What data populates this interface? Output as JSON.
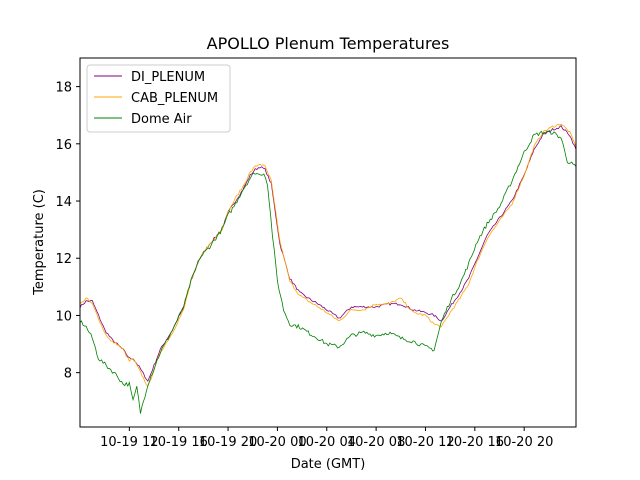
{
  "chart_data": {
    "type": "line",
    "title": "APOLLO Plenum Temperatures",
    "xlabel": "Date (GMT)",
    "ylabel": "Temperature (C)",
    "x_unit": "hours since 10-19 08:00 GMT",
    "xlim": [
      0,
      40.2
    ],
    "ylim": [
      6.1,
      19.0
    ],
    "yticks": [
      8,
      10,
      12,
      14,
      16,
      18
    ],
    "xticks": [
      {
        "value": 4,
        "label": "10-19 12"
      },
      {
        "value": 8,
        "label": "10-19 16"
      },
      {
        "value": 12,
        "label": "10-19 20"
      },
      {
        "value": 16,
        "label": "10-20 00"
      },
      {
        "value": 20,
        "label": "10-20 04"
      },
      {
        "value": 24,
        "label": "10-20 08"
      },
      {
        "value": 28,
        "label": "10-20 12"
      },
      {
        "value": 32,
        "label": "10-20 16"
      },
      {
        "value": 36,
        "label": "10-20 20"
      }
    ],
    "legend_position": "top-left",
    "series": [
      {
        "name": "DI_PLENUM",
        "color": "#800080",
        "x": [
          0,
          0.5,
          1.0,
          1.5,
          2.0,
          2.5,
          3.0,
          3.5,
          4.0,
          4.3,
          4.8,
          5.5,
          6.5,
          7.5,
          8.4,
          9.0,
          9.7,
          10.5,
          11.5,
          12.0,
          12.6,
          13.2,
          13.8,
          14.2,
          14.6,
          15.0,
          15.5,
          16.2,
          17.0,
          17.8,
          18.5,
          19.3,
          20.0,
          21.0,
          22.0,
          23.0,
          24.0,
          25.0,
          26.0,
          27.0,
          28.0,
          28.7,
          29.3,
          30.0,
          30.8,
          31.5,
          32.2,
          33.0,
          34.0,
          35.0,
          36.0,
          36.8,
          37.5,
          38.3,
          39.0,
          39.7,
          40.2
        ],
        "values": [
          10.3,
          10.5,
          10.5,
          10.0,
          9.5,
          9.2,
          9.0,
          8.8,
          8.5,
          8.5,
          8.2,
          7.7,
          8.8,
          9.5,
          10.3,
          11.2,
          12.0,
          12.5,
          13.0,
          13.6,
          14.0,
          14.4,
          14.9,
          15.1,
          15.2,
          15.1,
          14.6,
          12.5,
          11.3,
          10.8,
          10.6,
          10.4,
          10.2,
          9.9,
          10.3,
          10.3,
          10.3,
          10.4,
          10.4,
          10.2,
          10.1,
          10.0,
          9.8,
          10.3,
          10.8,
          11.3,
          12.0,
          12.8,
          13.4,
          14.0,
          14.9,
          15.8,
          16.3,
          16.5,
          16.6,
          16.3,
          15.8
        ]
      },
      {
        "name": "CAB_PLENUM",
        "color": "#ffa500",
        "x": [
          0,
          0.5,
          1.0,
          1.5,
          2.0,
          2.5,
          3.0,
          3.5,
          4.0,
          4.3,
          4.8,
          5.5,
          6.5,
          7.5,
          8.4,
          9.0,
          9.7,
          10.5,
          11.5,
          12.0,
          12.6,
          13.2,
          13.8,
          14.2,
          14.6,
          15.0,
          15.5,
          16.2,
          17.0,
          17.8,
          18.5,
          19.3,
          20.0,
          21.0,
          22.0,
          23.0,
          24.0,
          25.0,
          26.0,
          27.0,
          28.0,
          28.7,
          29.3,
          30.0,
          30.8,
          31.5,
          32.2,
          33.0,
          34.0,
          35.0,
          36.0,
          36.8,
          37.5,
          38.3,
          39.0,
          39.7,
          40.2
        ],
        "values": [
          10.4,
          10.6,
          10.4,
          9.9,
          9.4,
          9.1,
          9.0,
          8.8,
          8.4,
          8.5,
          8.1,
          7.5,
          8.7,
          9.4,
          10.2,
          11.2,
          12.0,
          12.5,
          13.0,
          13.6,
          14.1,
          14.5,
          15.0,
          15.2,
          15.3,
          15.2,
          14.7,
          12.6,
          11.2,
          10.7,
          10.5,
          10.3,
          10.1,
          9.8,
          10.2,
          10.2,
          10.4,
          10.4,
          10.6,
          10.1,
          10.0,
          9.7,
          9.6,
          10.1,
          10.6,
          11.1,
          11.9,
          12.7,
          13.3,
          13.9,
          14.9,
          15.9,
          16.4,
          16.6,
          16.7,
          16.4,
          15.9
        ]
      },
      {
        "name": "Dome Air",
        "color": "#008000",
        "x": [
          0,
          0.5,
          1.0,
          1.5,
          2.0,
          2.5,
          3.0,
          3.5,
          4.0,
          4.3,
          4.6,
          4.9,
          5.5,
          6.5,
          7.5,
          8.4,
          9.0,
          9.7,
          10.5,
          11.5,
          12.0,
          12.6,
          13.2,
          13.8,
          14.2,
          14.6,
          14.9,
          15.2,
          15.6,
          16.0,
          16.5,
          17.0,
          17.8,
          18.5,
          19.3,
          20.0,
          21.0,
          22.0,
          23.0,
          24.0,
          25.0,
          26.0,
          27.0,
          28.0,
          28.7,
          29.3,
          30.0,
          30.8,
          31.5,
          32.2,
          33.0,
          34.0,
          35.0,
          36.0,
          36.8,
          37.5,
          38.3,
          39.0,
          39.5,
          40.2
        ],
        "values": [
          9.8,
          9.6,
          9.2,
          8.5,
          8.3,
          8.1,
          7.9,
          7.6,
          7.6,
          7.0,
          7.5,
          6.6,
          7.6,
          8.7,
          9.5,
          10.3,
          11.2,
          12.0,
          12.4,
          13.0,
          13.5,
          13.9,
          14.4,
          14.8,
          15.0,
          14.9,
          15.0,
          14.6,
          12.8,
          11.2,
          10.2,
          9.7,
          9.6,
          9.4,
          9.2,
          9.0,
          8.9,
          9.3,
          9.4,
          9.3,
          9.4,
          9.2,
          9.1,
          8.9,
          8.8,
          9.8,
          10.5,
          11.1,
          11.8,
          12.6,
          13.2,
          13.8,
          14.7,
          15.7,
          16.3,
          16.4,
          16.4,
          16.2,
          15.4,
          15.2
        ]
      }
    ]
  }
}
